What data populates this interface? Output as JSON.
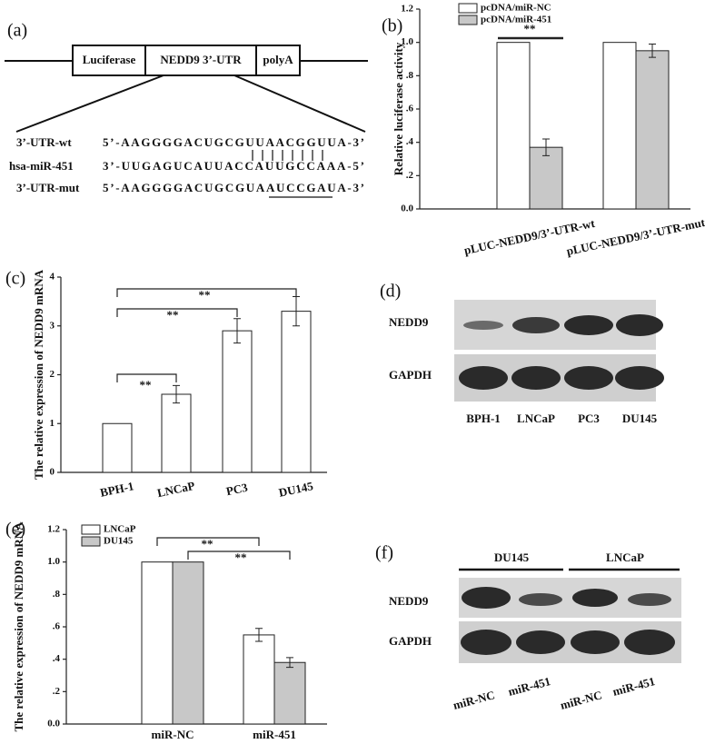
{
  "figure": {
    "a": {
      "label": "(a)",
      "construct": [
        "Luciferase",
        "NEDD9 3’-UTR",
        "polyA"
      ],
      "rows": [
        {
          "name": "3’-UTR-wt",
          "sequence": "5’-AAGGGGACUGCGUUAACGGUUA-3’"
        },
        {
          "name": "hsa-miR-451",
          "sequence": "3’-UUGAGUCAUUACCAUUGCCAAA-5’"
        },
        {
          "name": "3’-UTR-mut",
          "sequence": "5’-AAGGGGACUGCGUAAUCCGAUA-3’"
        }
      ]
    },
    "d": {
      "label": "(d)",
      "rows": [
        "NEDD9",
        "GAPDH"
      ],
      "lanes": [
        "BPH-1",
        "LNCaP",
        "PC3",
        "DU145"
      ]
    },
    "f": {
      "label": "(f)",
      "groups": [
        "DU145",
        "LNCaP"
      ],
      "rows": [
        "NEDD9",
        "GAPDH"
      ],
      "lanes": [
        "miR-NC",
        "miR-451",
        "miR-NC",
        "miR-451"
      ]
    }
  },
  "chart_data": [
    {
      "type": "bar",
      "panel": "(b)",
      "ylabel": "Relative luciferase activity",
      "categories": [
        "pLUC-NEDD9/3’-UTR-wt",
        "pLUC-NEDD9/3’-UTR-mut"
      ],
      "series": [
        {
          "name": "pcDNA/miR-NC",
          "color": "#ffffff",
          "values": [
            1.0,
            1.0
          ]
        },
        {
          "name": "pcDNA/miR-451",
          "color": "#c8c8c8",
          "values": [
            0.37,
            0.95
          ],
          "errors": [
            0.05,
            0.04
          ]
        }
      ],
      "ylim": [
        0,
        1.2
      ],
      "yticks": [
        {
          "value": 0,
          "label": "0.0"
        },
        {
          "value": 0.2,
          "label": ".2"
        },
        {
          "value": 0.4,
          "label": ".4"
        },
        {
          "value": 0.6,
          "label": ".6"
        },
        {
          "value": 0.8,
          "label": ".8"
        },
        {
          "value": 1,
          "label": "1.0"
        },
        1.2
      ],
      "annotations": [
        "**"
      ]
    },
    {
      "type": "bar",
      "panel": "(c)",
      "ylabel": "The relative expression of NEDD9 mRNA",
      "categories": [
        "BPH-1",
        "LNCaP",
        "PC3",
        "DU145"
      ],
      "values": [
        1,
        1.6,
        2.9,
        3.3
      ],
      "errors": [
        null,
        0.18,
        0.25,
        0.3
      ],
      "color": "#ffffff",
      "ylim": [
        0,
        4
      ],
      "yticks": [
        0,
        1,
        2,
        3,
        4
      ],
      "annotations": [
        "**",
        "**",
        "**"
      ]
    },
    {
      "type": "bar",
      "panel": "(e)",
      "ylabel": "The relative expression of NEDD9 mRNA",
      "categories": [
        "miR-NC",
        "miR-451"
      ],
      "series": [
        {
          "name": "LNCaP",
          "color": "#ffffff",
          "values": [
            1.0,
            0.55
          ],
          "errors": [
            null,
            0.04
          ]
        },
        {
          "name": "DU145",
          "color": "#c8c8c8",
          "values": [
            1.0,
            0.38
          ],
          "errors": [
            null,
            0.03
          ]
        }
      ],
      "ylim": [
        0,
        1.2
      ],
      "yticks": [
        {
          "value": 0,
          "label": "0.0"
        },
        {
          "value": 0.2,
          "label": ".2"
        },
        {
          "value": 0.4,
          "label": ".4"
        },
        {
          "value": 0.6,
          "label": ".6"
        },
        {
          "value": 0.8,
          "label": ".8"
        },
        {
          "value": 1,
          "label": "1.0"
        },
        1.2
      ],
      "annotations": [
        "**",
        "**"
      ]
    }
  ]
}
